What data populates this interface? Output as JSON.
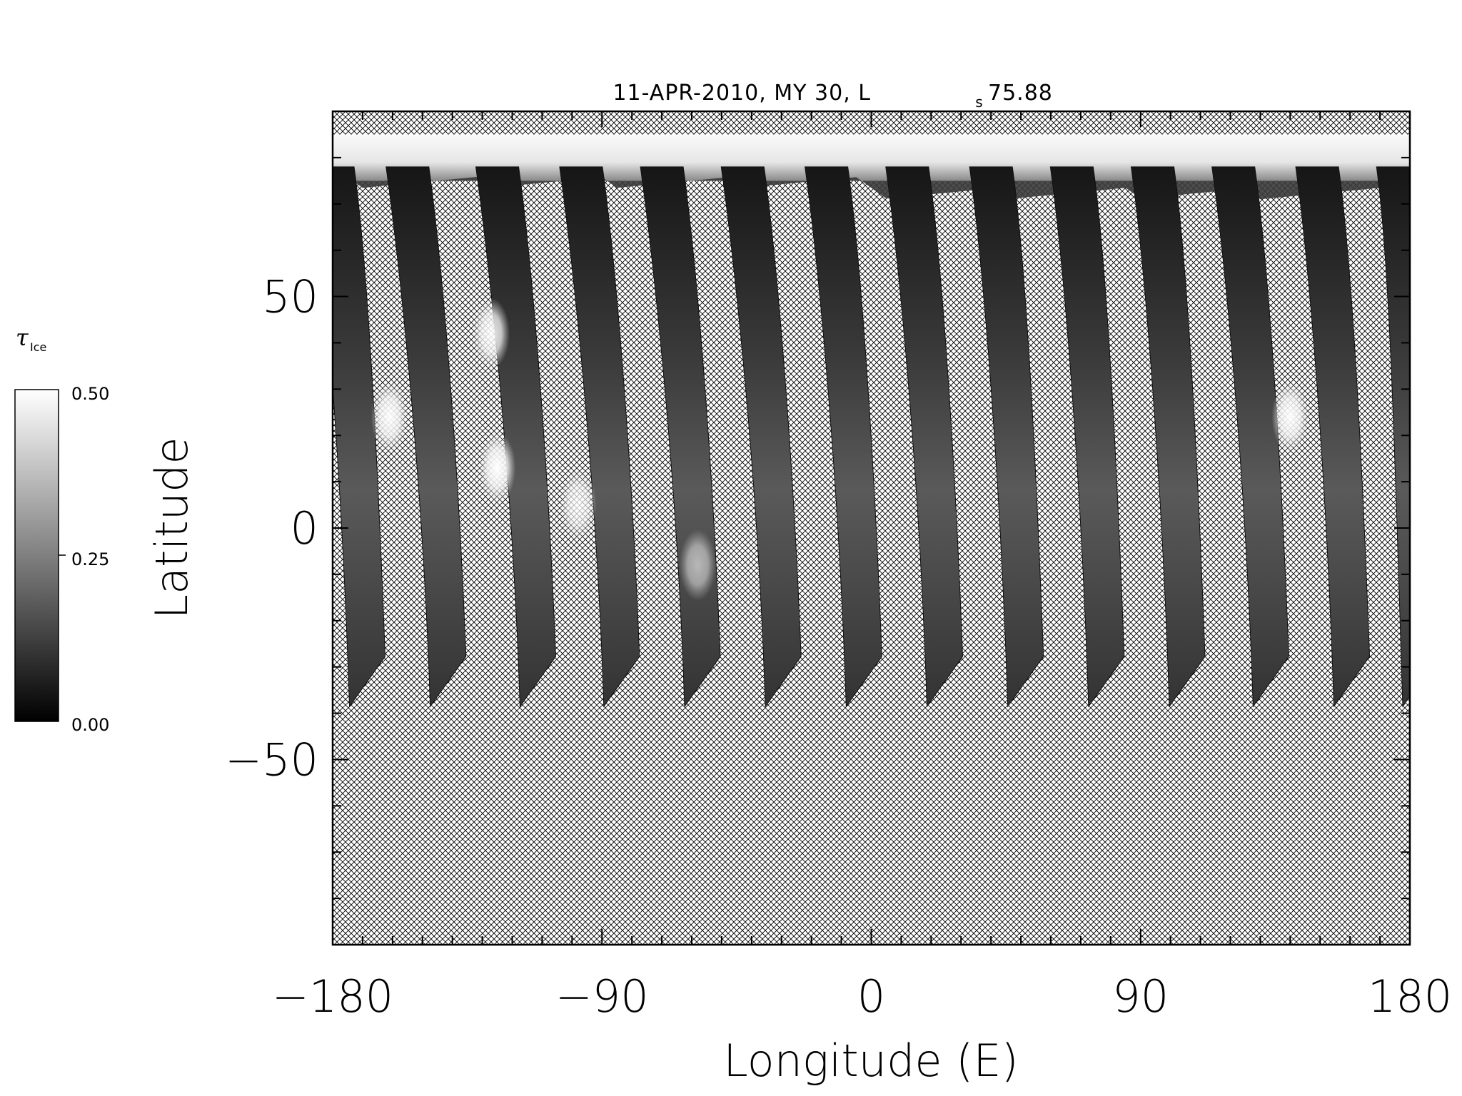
{
  "chart_data": {
    "type": "heatmap",
    "title": {
      "prefix": "11-APR-2010, MY 30,  L",
      "subscript": "s",
      "suffix": " 75.88"
    },
    "xlabel": "Longitude (E)",
    "ylabel": "Latitude",
    "xlim": [
      -180,
      180
    ],
    "ylim": [
      -90,
      90
    ],
    "x_ticks": [
      -180,
      -90,
      0,
      90,
      180
    ],
    "x_tick_labels": [
      "−180",
      "−90",
      "0",
      "90",
      "180"
    ],
    "x_minor_step": 10,
    "y_ticks": [
      -50,
      0,
      50
    ],
    "y_tick_labels": [
      "−50",
      "0",
      "50"
    ],
    "y_minor_step": 10,
    "colorbar": {
      "symbol": "τ",
      "subscript": "Ice",
      "min_label": "0.00",
      "mid_label": "0.25",
      "max_label": "0.50",
      "range": [
        0.0,
        0.5
      ]
    },
    "north_cap": {
      "lat_south_edge": 75,
      "lat_top": 85,
      "typical_value": 0.45
    },
    "swaths": [
      {
        "lon_north": -180,
        "lon_south": -172,
        "lat_north": 62,
        "lat_south": -37
      },
      {
        "lon_north": -155,
        "lon_south": -145,
        "lat_north": 62,
        "lat_south": -37
      },
      {
        "lon_north": -125,
        "lon_south": -115,
        "lat_north": 62,
        "lat_south": -37
      },
      {
        "lon_north": -97,
        "lon_south": -87,
        "lat_north": 62,
        "lat_south": -37
      },
      {
        "lon_north": -70,
        "lon_south": -60,
        "lat_north": 62,
        "lat_south": -37
      },
      {
        "lon_north": -43,
        "lon_south": -33,
        "lat_north": 62,
        "lat_south": -37
      },
      {
        "lon_north": -15,
        "lon_south": -6,
        "lat_north": 62,
        "lat_south": -37
      },
      {
        "lon_north": 12,
        "lon_south": 21,
        "lat_north": 62,
        "lat_south": -37
      },
      {
        "lon_north": 40,
        "lon_south": 48,
        "lat_north": 62,
        "lat_south": -37
      },
      {
        "lon_north": 67,
        "lon_south": 75,
        "lat_north": 62,
        "lat_south": -37
      },
      {
        "lon_north": 94,
        "lon_south": 102,
        "lat_north": 62,
        "lat_south": -37
      },
      {
        "lon_north": 121,
        "lon_south": 130,
        "lat_north": 62,
        "lat_south": -37
      },
      {
        "lon_north": 149,
        "lon_south": 157,
        "lat_north": 62,
        "lat_south": -37
      },
      {
        "lon_north": 176,
        "lon_south": 180,
        "lat_north": 62,
        "lat_south": -37
      }
    ],
    "bright_clouds": [
      {
        "lon": -161,
        "lat": 24,
        "value": 0.48
      },
      {
        "lon": -127,
        "lat": 42,
        "value": 0.45
      },
      {
        "lon": -125,
        "lat": 13,
        "value": 0.5
      },
      {
        "lon": -98,
        "lat": 5,
        "value": 0.38
      },
      {
        "lon": 140,
        "lat": 24,
        "value": 0.48
      },
      {
        "lon": -58,
        "lat": -8,
        "value": 0.3
      }
    ],
    "missing_data_pattern": "crosshatch"
  }
}
